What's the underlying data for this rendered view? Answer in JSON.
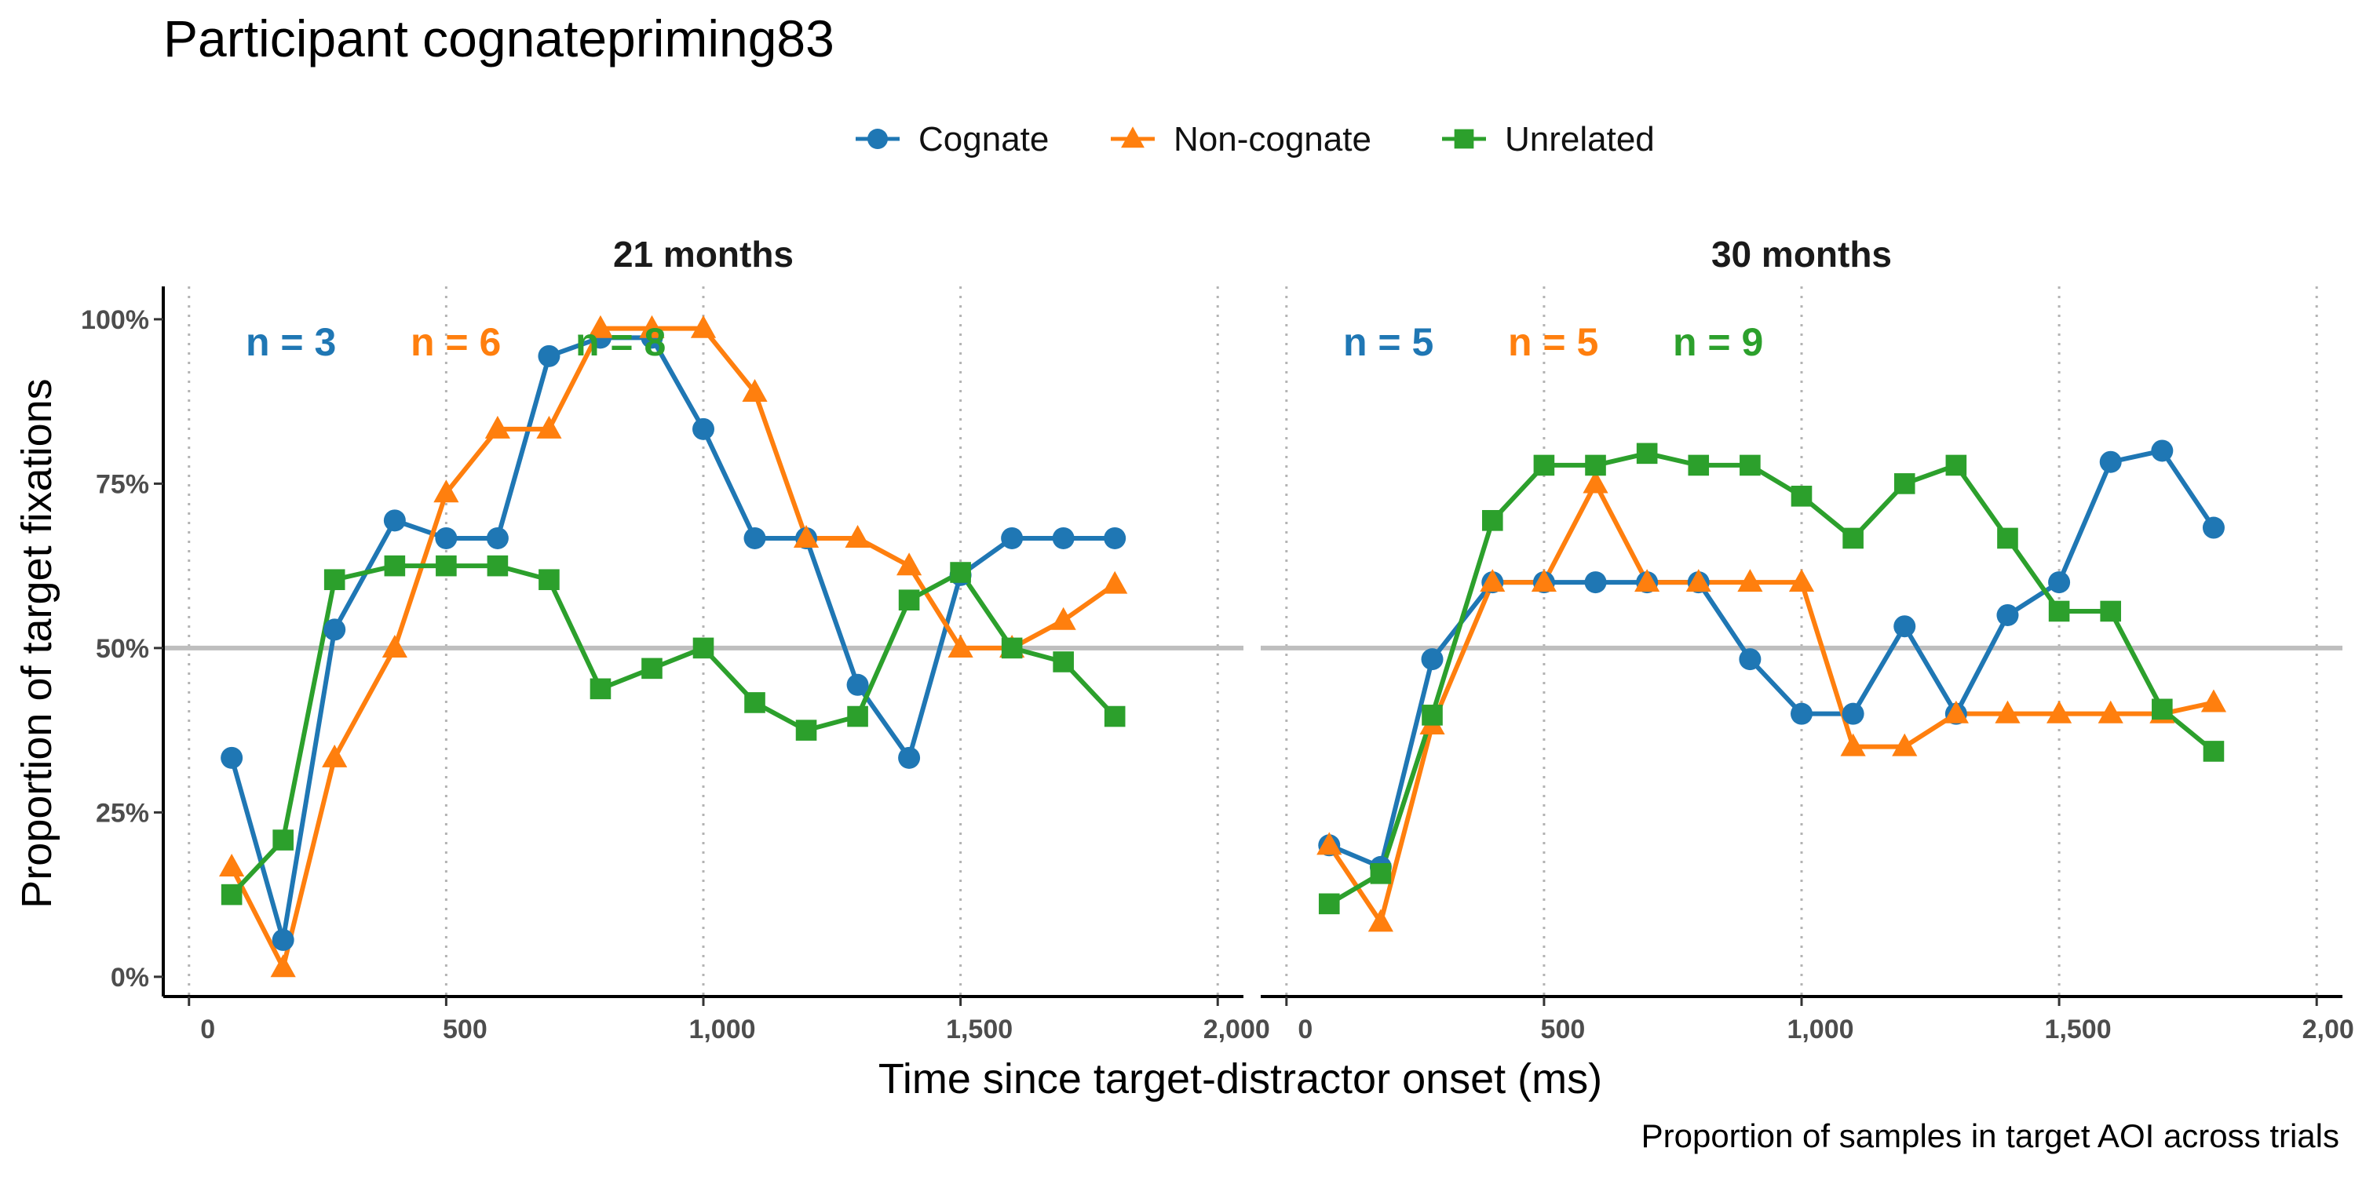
{
  "title": "Participant cognatepriming83",
  "caption": "Proportion of samples in target AOI across trials",
  "colors": {
    "Cognate": "#1f77b4",
    "Non-cognate": "#ff7f0e",
    "Unrelated": "#2ca02c",
    "reference_line": "#bebebe"
  },
  "legend": [
    {
      "label": "Cognate",
      "shape": "circle"
    },
    {
      "label": "Non-cognate",
      "shape": "triangle"
    },
    {
      "label": "Unrelated",
      "shape": "square"
    }
  ],
  "chart_data": {
    "type": "line",
    "xlabel": "Time since target-distractor onset (ms)",
    "ylabel": "Proportion of target fixations",
    "xlim": [
      -50,
      2050
    ],
    "ylim": [
      -0.03,
      1.05
    ],
    "x_ticks": [
      {
        "value": 0,
        "label": "0"
      },
      {
        "value": 500,
        "label": "500"
      },
      {
        "value": 1000,
        "label": "1,000"
      },
      {
        "value": 1500,
        "label": "1,500"
      },
      {
        "value": 2000,
        "label": "2,000"
      }
    ],
    "y_ticks": [
      {
        "value": 0,
        "label": "0%"
      },
      {
        "value": 0.25,
        "label": "25%"
      },
      {
        "value": 0.5,
        "label": "50%"
      },
      {
        "value": 0.75,
        "label": "75%"
      },
      {
        "value": 1,
        "label": "100%"
      }
    ],
    "reference_line": 0.5,
    "legend_position": "top",
    "panels": [
      {
        "label": "21 months",
        "n_labels": [
          {
            "series": "Cognate",
            "text": "n = 3"
          },
          {
            "series": "Non-cognate",
            "text": "n = 6"
          },
          {
            "series": "Unrelated",
            "text": "n = 8"
          }
        ],
        "series": [
          {
            "name": "Cognate",
            "x": [
              83,
              183,
              283,
              400,
              500,
              600,
              700,
              800,
              900,
              1000,
              1100,
              1200,
              1300,
              1400,
              1500,
              1600,
              1700,
              1800
            ],
            "y": [
              0.333,
              0.056,
              0.528,
              0.694,
              0.667,
              0.667,
              0.944,
              0.972,
              0.972,
              0.833,
              0.667,
              0.667,
              0.444,
              0.333,
              0.611,
              0.667,
              0.667,
              0.667
            ]
          },
          {
            "name": "Non-cognate",
            "x": [
              83,
              183,
              283,
              400,
              500,
              600,
              700,
              800,
              900,
              1000,
              1100,
              1200,
              1300,
              1400,
              1500,
              1600,
              1700,
              1800
            ],
            "y": [
              0.167,
              0.014,
              0.333,
              0.5,
              0.736,
              0.833,
              0.833,
              0.986,
              0.986,
              0.986,
              0.889,
              0.667,
              0.667,
              0.625,
              0.5,
              0.5,
              0.542,
              0.597
            ]
          },
          {
            "name": "Unrelated",
            "x": [
              83,
              183,
              283,
              400,
              500,
              600,
              700,
              800,
              900,
              1000,
              1100,
              1200,
              1300,
              1400,
              1500,
              1600,
              1700,
              1800
            ],
            "y": [
              0.125,
              0.208,
              0.604,
              0.625,
              0.625,
              0.625,
              0.604,
              0.438,
              0.469,
              0.5,
              0.417,
              0.375,
              0.396,
              0.573,
              0.615,
              0.5,
              0.479,
              0.396
            ]
          }
        ]
      },
      {
        "label": "30 months",
        "n_labels": [
          {
            "series": "Cognate",
            "text": "n = 5"
          },
          {
            "series": "Non-cognate",
            "text": "n = 5"
          },
          {
            "series": "Unrelated",
            "text": "n = 9"
          }
        ],
        "series": [
          {
            "name": "Cognate",
            "x": [
              83,
              183,
              283,
              400,
              500,
              600,
              700,
              800,
              900,
              1000,
              1100,
              1200,
              1300,
              1400,
              1500,
              1600,
              1700,
              1800
            ],
            "y": [
              0.2,
              0.167,
              0.483,
              0.6,
              0.6,
              0.6,
              0.6,
              0.6,
              0.483,
              0.4,
              0.4,
              0.533,
              0.4,
              0.55,
              0.6,
              0.783,
              0.8,
              0.683
            ]
          },
          {
            "name": "Non-cognate",
            "x": [
              83,
              183,
              283,
              400,
              500,
              600,
              700,
              800,
              900,
              1000,
              1100,
              1200,
              1300,
              1400,
              1500,
              1600,
              1700,
              1800
            ],
            "y": [
              0.2,
              0.083,
              0.383,
              0.6,
              0.6,
              0.75,
              0.6,
              0.6,
              0.6,
              0.6,
              0.35,
              0.35,
              0.4,
              0.4,
              0.4,
              0.4,
              0.4,
              0.417
            ]
          },
          {
            "name": "Unrelated",
            "x": [
              83,
              183,
              283,
              400,
              500,
              600,
              700,
              800,
              900,
              1000,
              1100,
              1200,
              1300,
              1400,
              1500,
              1600,
              1700,
              1800
            ],
            "y": [
              0.111,
              0.157,
              0.398,
              0.694,
              0.778,
              0.778,
              0.796,
              0.778,
              0.778,
              0.731,
              0.667,
              0.75,
              0.778,
              0.667,
              0.556,
              0.556,
              0.407,
              0.343
            ]
          }
        ]
      }
    ]
  }
}
